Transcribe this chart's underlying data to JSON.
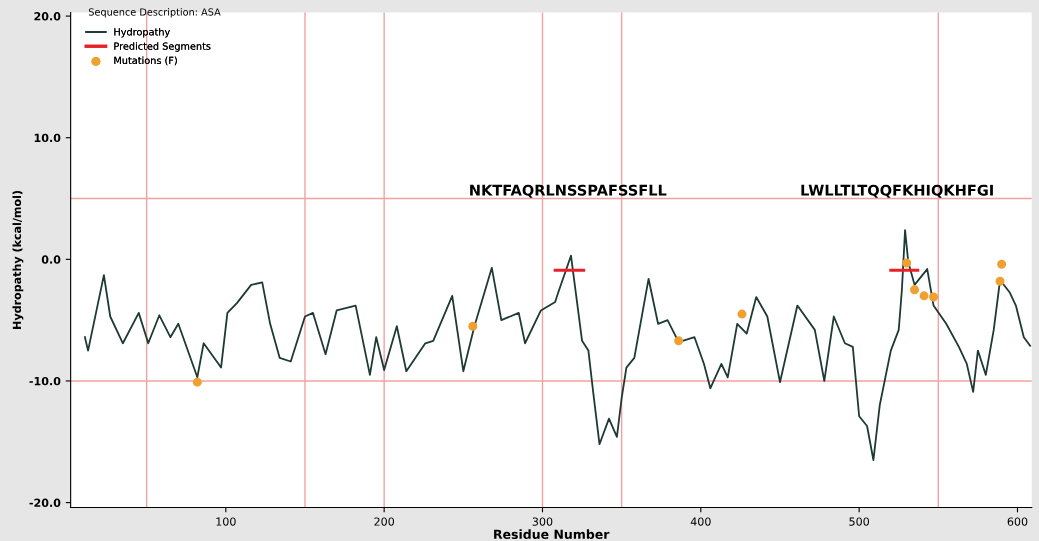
{
  "chart_data": {
    "type": "line",
    "title": "Sequence Description: ASA",
    "xlabel": "Residue Number",
    "ylabel": "Hydropathy (kcal/mol)",
    "xlim": [
      2,
      609
    ],
    "ylim": [
      -20.4,
      20.3
    ],
    "xticks": [
      100,
      200,
      300,
      400,
      500,
      600
    ],
    "yticks": [
      {
        "value": 20,
        "label": "20.0"
      },
      {
        "value": 10,
        "label": "10.0"
      },
      {
        "value": 0,
        "label": "0.0"
      },
      {
        "value": -10,
        "label": "-10.0"
      },
      {
        "value": -20,
        "label": "-20.0"
      }
    ],
    "grid": false,
    "legend": "top left",
    "series": [
      {
        "name": "Hydropathy",
        "color": "#1e3a34",
        "x": [
          11,
          13,
          23,
          27,
          35,
          45,
          51,
          58,
          65,
          70,
          82,
          86,
          97,
          101,
          107,
          116,
          123,
          128,
          134,
          141,
          150,
          155,
          163,
          170,
          182,
          191,
          195,
          200,
          208,
          214,
          226,
          231,
          243,
          250,
          257,
          268,
          274,
          285,
          289,
          299,
          308,
          310,
          318,
          325,
          329,
          332,
          336,
          342,
          347,
          350,
          353,
          358,
          367,
          373,
          379,
          386,
          396,
          402,
          406,
          413,
          417,
          423,
          429,
          435,
          442,
          450,
          461,
          472,
          478,
          484,
          491,
          496,
          500,
          505,
          509,
          513,
          520,
          525,
          527,
          529,
          531,
          535,
          543,
          547,
          555,
          563,
          568,
          572,
          575,
          580,
          585,
          589,
          595,
          599,
          604,
          608
        ],
        "values": [
          -6.4,
          -7.5,
          -1.3,
          -4.7,
          -6.9,
          -4.4,
          -6.9,
          -4.6,
          -6.4,
          -5.3,
          -9.7,
          -6.9,
          -8.9,
          -4.4,
          -3.6,
          -2.1,
          -1.9,
          -5.3,
          -8.1,
          -8.4,
          -4.7,
          -4.4,
          -7.8,
          -4.2,
          -3.8,
          -9.5,
          -6.4,
          -9.1,
          -5.5,
          -9.2,
          -6.9,
          -6.7,
          -3.0,
          -9.2,
          -5.5,
          -0.7,
          -5.0,
          -4.4,
          -6.9,
          -4.2,
          -3.5,
          -2.7,
          0.3,
          -6.7,
          -7.5,
          -10.9,
          -15.2,
          -13.1,
          -14.6,
          -11.4,
          -8.9,
          -8.1,
          -1.6,
          -5.3,
          -5.0,
          -6.8,
          -6.4,
          -8.6,
          -10.6,
          -8.6,
          -9.7,
          -5.3,
          -6.1,
          -3.1,
          -4.7,
          -10.1,
          -3.8,
          -5.8,
          -10.0,
          -4.7,
          -6.9,
          -7.2,
          -12.9,
          -13.7,
          -16.5,
          -12.0,
          -7.5,
          -5.8,
          -2.5,
          2.4,
          -0.2,
          -2.1,
          -0.8,
          -3.8,
          -5.3,
          -7.2,
          -8.6,
          -10.9,
          -7.5,
          -9.5,
          -5.8,
          -1.7,
          -2.7,
          -3.8,
          -6.4,
          -7.1
        ]
      },
      {
        "name": "Predicted Segments",
        "color": "#e8202a",
        "x": [
          308,
          326,
          423,
          520,
          537
        ],
        "values": [
          -0.9,
          -0.9,
          null,
          -0.9,
          -0.9
        ]
      },
      {
        "name": "Mutations (F)",
        "type": "scatter",
        "color": "#f0a030",
        "x": [
          82,
          256,
          386,
          426,
          530,
          535,
          541,
          547,
          589,
          590
        ],
        "values": [
          -10.1,
          -5.5,
          -6.7,
          -4.5,
          -0.3,
          -2.5,
          -3.0,
          -3.1,
          -1.8,
          -0.4
        ]
      }
    ],
    "annotations": [
      {
        "text": "NKTFAQRLNSSPAFSSFLL",
        "x": 316,
        "y": 5
      },
      {
        "text": "LWLLTLTQQFKHIQKHFGI",
        "x": 524,
        "y": 5
      }
    ],
    "ref_lines": [
      {
        "axis": "y",
        "value": 5,
        "color": "#f4a0a0"
      },
      {
        "axis": "y",
        "value": -10,
        "color": "#f4a0a0"
      },
      {
        "axis": "x",
        "value": 50,
        "color": "#f4a0a0"
      },
      {
        "axis": "x",
        "value": 150,
        "color": "#f4a0a0"
      },
      {
        "axis": "x",
        "value": 200,
        "color": "#f4a0a0"
      },
      {
        "axis": "x",
        "value": 300,
        "color": "#f4a0a0"
      },
      {
        "axis": "x",
        "value": 350,
        "color": "#f4a0a0"
      },
      {
        "axis": "x",
        "value": 550,
        "color": "#f4a0a0"
      }
    ]
  }
}
